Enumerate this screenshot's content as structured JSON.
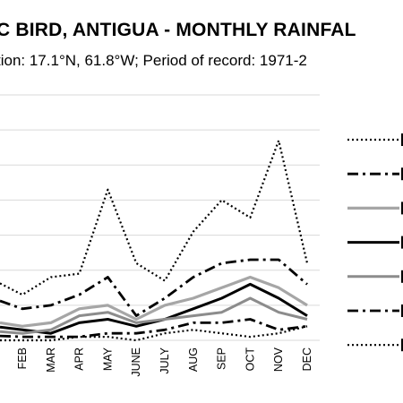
{
  "chart_data": {
    "type": "line",
    "title": "C BIRD, ANTIGUA - MONTHLY RAINFAL",
    "subtitle": "tion: 17.1°N, 61.8°W; Period of record: 1971-2",
    "categories": [
      "FEB",
      "MAR",
      "APR",
      "MAY",
      "JUNE",
      "JULY",
      "AUG",
      "SEP",
      "OCT",
      "NOV",
      "DEC"
    ],
    "ylim": [
      0,
      7
    ],
    "grid": true,
    "legend": "right",
    "series": [
      {
        "values": [
          1.3,
          1.8,
          1.9,
          4.3,
          2.2,
          1.7,
          3.1,
          4.0,
          3.5,
          5.7,
          2.2
        ],
        "color": "#000000",
        "dash": "2,3",
        "width": 2.2
      },
      {
        "values": [
          0.9,
          1.0,
          1.3,
          1.8,
          0.7,
          1.2,
          1.8,
          2.2,
          2.3,
          2.3,
          1.6
        ],
        "color": "#000000",
        "dash": "12,5,3,5",
        "width": 2.8
      },
      {
        "values": [
          0.4,
          0.5,
          0.9,
          1.0,
          0.6,
          1.0,
          1.2,
          1.5,
          1.8,
          1.5,
          1.0
        ],
        "color": "#a6a6a6",
        "dash": "",
        "width": 3.2
      },
      {
        "values": [
          0.3,
          0.2,
          0.5,
          0.6,
          0.4,
          0.6,
          0.9,
          1.2,
          1.6,
          1.2,
          0.7
        ],
        "color": "#000000",
        "dash": "",
        "width": 3
      },
      {
        "values": [
          0.2,
          0.3,
          0.7,
          0.8,
          0.5,
          0.6,
          0.7,
          0.8,
          1.2,
          0.8,
          0.6
        ],
        "color": "#8c8c8c",
        "dash": "",
        "width": 3
      },
      {
        "values": [
          0.1,
          0.1,
          0.1,
          0.2,
          0.2,
          0.3,
          0.5,
          0.5,
          0.6,
          0.3,
          0.4
        ],
        "color": "#000000",
        "dash": "12,5,3,5",
        "width": 2.8
      },
      {
        "values": [
          0.0,
          0.0,
          0.1,
          0.1,
          0.0,
          0.2,
          0.3,
          0.2,
          0.1,
          0.2,
          0.4
        ],
        "color": "#000000",
        "dash": "2,3",
        "width": 2.2
      }
    ]
  }
}
